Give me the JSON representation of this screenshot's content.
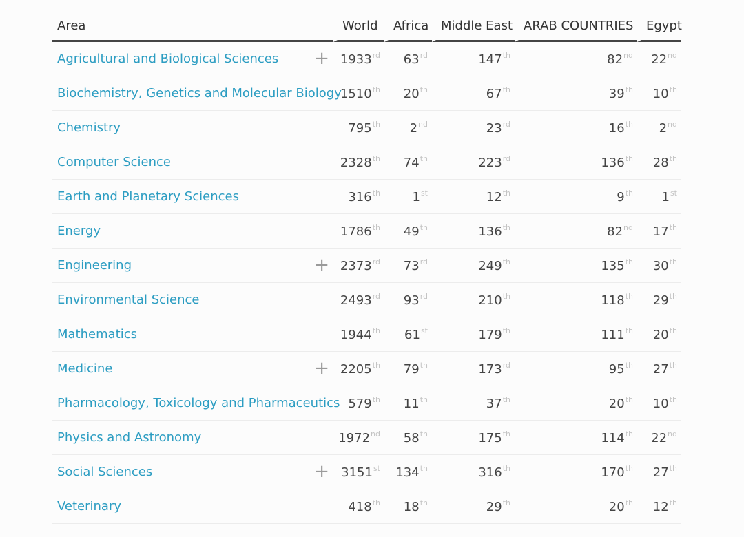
{
  "headers": [
    "Area",
    "World",
    "Africa",
    "Middle East",
    "ARAB COUNTRIES",
    "Egypt"
  ],
  "icons": {
    "expand": "plus-icon"
  },
  "rows": [
    {
      "area": "Agricultural and Biological Sciences",
      "expand": "+",
      "world": "1933",
      "world_s": "rd",
      "africa": "63",
      "africa_s": "rd",
      "me": "147",
      "me_s": "th",
      "arab": "82",
      "arab_s": "nd",
      "egypt": "22",
      "egypt_s": "nd"
    },
    {
      "area": "Biochemistry, Genetics and Molecular Biology",
      "world": "1510",
      "world_s": "th",
      "africa": "20",
      "africa_s": "th",
      "me": "67",
      "me_s": "th",
      "arab": "39",
      "arab_s": "th",
      "egypt": "10",
      "egypt_s": "th"
    },
    {
      "area": "Chemistry",
      "world": "795",
      "world_s": "th",
      "africa": "2",
      "africa_s": "nd",
      "me": "23",
      "me_s": "rd",
      "arab": "16",
      "arab_s": "th",
      "egypt": "2",
      "egypt_s": "nd"
    },
    {
      "area": "Computer Science",
      "world": "2328",
      "world_s": "th",
      "africa": "74",
      "africa_s": "th",
      "me": "223",
      "me_s": "rd",
      "arab": "136",
      "arab_s": "th",
      "egypt": "28",
      "egypt_s": "th"
    },
    {
      "area": "Earth and Planetary Sciences",
      "world": "316",
      "world_s": "th",
      "africa": "1",
      "africa_s": "st",
      "me": "12",
      "me_s": "th",
      "arab": "9",
      "arab_s": "th",
      "egypt": "1",
      "egypt_s": "st"
    },
    {
      "area": "Energy",
      "world": "1786",
      "world_s": "th",
      "africa": "49",
      "africa_s": "th",
      "me": "136",
      "me_s": "th",
      "arab": "82",
      "arab_s": "nd",
      "egypt": "17",
      "egypt_s": "th"
    },
    {
      "area": "Engineering",
      "expand": "+",
      "world": "2373",
      "world_s": "rd",
      "africa": "73",
      "africa_s": "rd",
      "me": "249",
      "me_s": "th",
      "arab": "135",
      "arab_s": "th",
      "egypt": "30",
      "egypt_s": "th"
    },
    {
      "area": "Environmental Science",
      "world": "2493",
      "world_s": "rd",
      "africa": "93",
      "africa_s": "rd",
      "me": "210",
      "me_s": "th",
      "arab": "118",
      "arab_s": "th",
      "egypt": "29",
      "egypt_s": "th"
    },
    {
      "area": "Mathematics",
      "world": "1944",
      "world_s": "th",
      "africa": "61",
      "africa_s": "st",
      "me": "179",
      "me_s": "th",
      "arab": "111",
      "arab_s": "th",
      "egypt": "20",
      "egypt_s": "th"
    },
    {
      "area": "Medicine",
      "expand": "+",
      "world": "2205",
      "world_s": "th",
      "africa": "79",
      "africa_s": "th",
      "me": "173",
      "me_s": "rd",
      "arab": "95",
      "arab_s": "th",
      "egypt": "27",
      "egypt_s": "th"
    },
    {
      "area": "Pharmacology, Toxicology and Pharmaceutics",
      "world": "579",
      "world_s": "th",
      "africa": "11",
      "africa_s": "th",
      "me": "37",
      "me_s": "th",
      "arab": "20",
      "arab_s": "th",
      "egypt": "10",
      "egypt_s": "th"
    },
    {
      "area": "Physics and Astronomy",
      "world": "1972",
      "world_s": "nd",
      "africa": "58",
      "africa_s": "th",
      "me": "175",
      "me_s": "th",
      "arab": "114",
      "arab_s": "th",
      "egypt": "22",
      "egypt_s": "nd"
    },
    {
      "area": "Social Sciences",
      "expand": "+",
      "world": "3151",
      "world_s": "st",
      "africa": "134",
      "africa_s": "th",
      "me": "316",
      "me_s": "th",
      "arab": "170",
      "arab_s": "th",
      "egypt": "27",
      "egypt_s": "th"
    },
    {
      "area": "Veterinary",
      "world": "418",
      "world_s": "th",
      "africa": "18",
      "africa_s": "th",
      "me": "29",
      "me_s": "th",
      "arab": "20",
      "arab_s": "th",
      "egypt": "12",
      "egypt_s": "th"
    }
  ]
}
